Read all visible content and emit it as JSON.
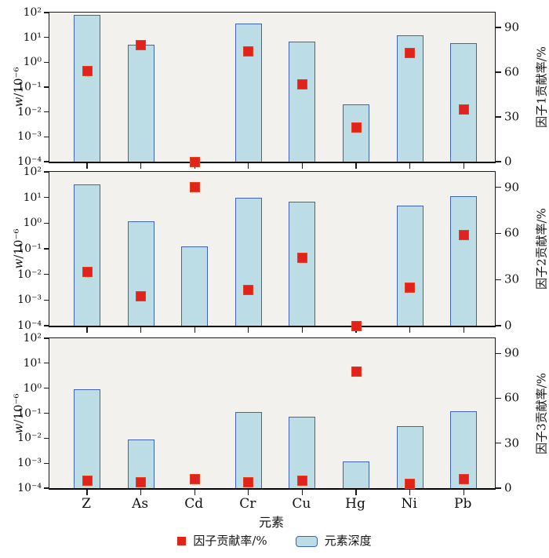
{
  "figure": {
    "x_label": "元素",
    "categories": [
      "Z",
      "As",
      "Cd",
      "Cr",
      "Cu",
      "Hg",
      "Ni",
      "Pb"
    ],
    "left_axis_label_w": "w",
    "left_axis_label_unit": "/10⁻⁶",
    "left_ticks": [
      "10²",
      "10¹",
      "10⁰",
      "10⁻¹",
      "10⁻²",
      "10⁻³",
      "10⁻⁴"
    ],
    "right_ticks": [
      "90",
      "60",
      "30",
      "0"
    ],
    "legend": [
      {
        "label": "因子贡献率/%",
        "swatch": "red-square"
      },
      {
        "label": "元素深度",
        "swatch": "light-blue-bar"
      }
    ],
    "colors": {
      "bar_fill": "#bcdde6",
      "bar_edge": "#3f63ae",
      "marker_red": "#e0241c",
      "plot_background": "#f2f1ee",
      "frame": "#1a1a1a"
    }
  },
  "chart_data": [
    {
      "type": "bar",
      "subtype": "log-bars-with-percent-markers",
      "panel": 1,
      "right_axis_label": "因子1贡献率/%",
      "left_axis_range": [
        0.0001,
        100
      ],
      "right_axis_range": [
        0,
        100
      ],
      "categories": [
        "Z",
        "As",
        "Cd",
        "Cr",
        "Cu",
        "Hg",
        "Ni",
        "Pb"
      ],
      "series": [
        {
          "name": "元素深度",
          "axis": "left-log",
          "unit": "10⁻⁶",
          "values": [
            80,
            5,
            null,
            35,
            7,
            0.02,
            12,
            6
          ]
        },
        {
          "name": "因子贡献率/%",
          "axis": "right-percent",
          "values": [
            61,
            78,
            0,
            74,
            52,
            23,
            73,
            35
          ]
        }
      ]
    },
    {
      "type": "bar",
      "subtype": "log-bars-with-percent-markers",
      "panel": 2,
      "right_axis_label": "因子2贡献率/%",
      "left_axis_range": [
        0.0001,
        100
      ],
      "right_axis_range": [
        0,
        100
      ],
      "categories": [
        "Z",
        "As",
        "Cd",
        "Cr",
        "Cu",
        "Hg",
        "Ni",
        "Pb"
      ],
      "series": [
        {
          "name": "元素深度",
          "axis": "left-log",
          "unit": "10⁻⁶",
          "values": [
            32,
            1.2,
            0.12,
            10,
            7,
            null,
            5,
            11
          ]
        },
        {
          "name": "因子贡献率/%",
          "axis": "right-percent",
          "values": [
            35,
            19,
            90,
            23,
            44,
            0,
            25,
            59
          ]
        }
      ]
    },
    {
      "type": "bar",
      "subtype": "log-bars-with-percent-markers",
      "panel": 3,
      "right_axis_label": "因子3贡献率/%",
      "left_axis_range": [
        0.0001,
        100
      ],
      "right_axis_range": [
        0,
        100
      ],
      "categories": [
        "Z",
        "As",
        "Cd",
        "Cr",
        "Cu",
        "Hg",
        "Ni",
        "Pb"
      ],
      "series": [
        {
          "name": "元素深度",
          "axis": "left-log",
          "unit": "10⁻⁶",
          "values": [
            0.9,
            0.009,
            null,
            0.11,
            0.07,
            0.0012,
            0.03,
            0.12
          ]
        },
        {
          "name": "因子贡献率/%",
          "axis": "right-percent",
          "values": [
            5,
            4,
            6,
            4,
            5,
            78,
            3,
            6
          ]
        }
      ]
    }
  ]
}
